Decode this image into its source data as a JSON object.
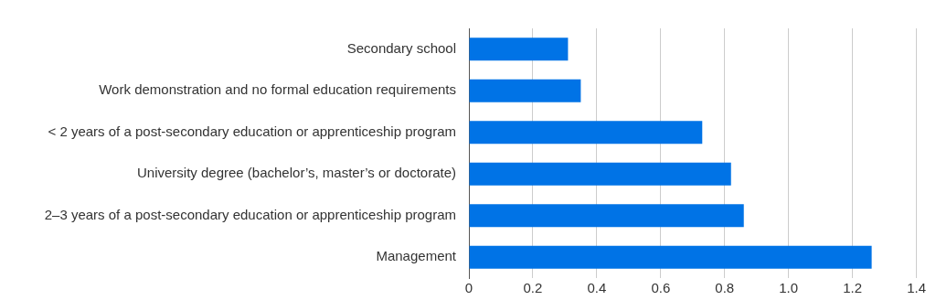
{
  "chart_data": {
    "type": "bar",
    "orientation": "horizontal",
    "categories": [
      "Secondary school",
      "Work demonstration and no formal education requirements",
      "< 2 years of a post-secondary education or apprenticeship program",
      "University degree (bachelor’s, master’s or doctorate)",
      "2–3 years of a post-secondary education or apprenticeship program",
      "Management"
    ],
    "values": [
      0.31,
      0.35,
      0.73,
      0.82,
      0.86,
      1.26
    ],
    "color": "#0073e6",
    "xlim": [
      0,
      1.4
    ],
    "xticks": [
      0,
      0.2,
      0.4,
      0.6,
      0.8,
      {
        "value": 1,
        "label": "1.0"
      },
      1.2,
      1.4
    ],
    "grid": "x"
  }
}
